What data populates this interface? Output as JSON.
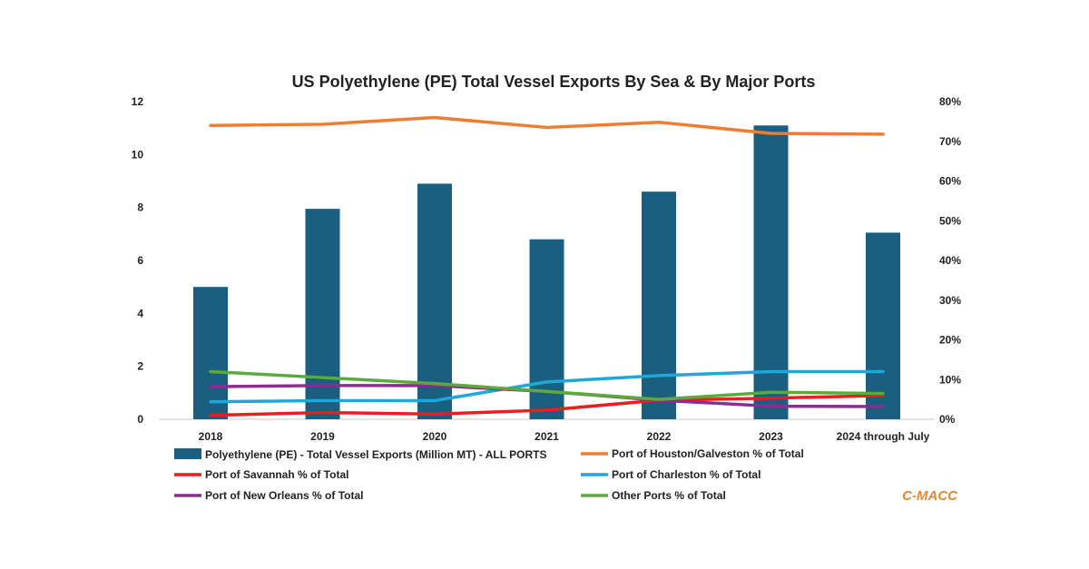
{
  "chart_data": {
    "type": "bar",
    "title": "US Polyethylene (PE) Total Vessel Exports By Sea & By Major Ports",
    "categories": [
      "2018",
      "2019",
      "2020",
      "2021",
      "2022",
      "2023",
      "2024 through July"
    ],
    "y_left": {
      "range": [
        0,
        12
      ],
      "ticks": [
        "0",
        "2",
        "4",
        "6",
        "8",
        "10",
        "12"
      ]
    },
    "y_right": {
      "range": [
        0,
        0.8
      ],
      "ticks": [
        "0%",
        "10%",
        "20%",
        "30%",
        "40%",
        "50%",
        "60%",
        "70%",
        "80%"
      ]
    },
    "grid": false,
    "legend_position": "bottom",
    "bar_series": {
      "name": "Polyethylene (PE) - Total Vessel Exports (Million MT) - ALL PORTS",
      "axis": "left",
      "color": "#1a5e80",
      "values": [
        5.0,
        7.95,
        8.9,
        6.8,
        8.6,
        11.1,
        7.05
      ]
    },
    "line_series": [
      {
        "name": "Port of Houston/Galveston % of Total",
        "axis": "right",
        "color": "#ed7d31",
        "values": [
          0.74,
          0.743,
          0.76,
          0.735,
          0.748,
          0.72,
          0.718
        ]
      },
      {
        "name": "Port of Savannah % of Total",
        "axis": "right",
        "color": "#ee1c1c",
        "values": [
          0.01,
          0.017,
          0.013,
          0.023,
          0.048,
          0.053,
          0.06
        ]
      },
      {
        "name": "Port of Charleston % of Total",
        "axis": "right",
        "color": "#1ea7d9",
        "values": [
          0.044,
          0.047,
          0.047,
          0.094,
          0.11,
          0.12,
          0.12
        ]
      },
      {
        "name": "Port of New Orleans % of Total",
        "axis": "right",
        "color": "#8e2a92",
        "values": [
          0.082,
          0.085,
          0.085,
          0.07,
          0.048,
          0.033,
          0.032
        ]
      },
      {
        "name": "Other Ports % of Total",
        "axis": "right",
        "color": "#5aab3c",
        "values": [
          0.12,
          0.105,
          0.09,
          0.07,
          0.05,
          0.068,
          0.065
        ]
      }
    ],
    "watermark": {
      "text": "C-MACC",
      "color": "#e08a2d"
    }
  }
}
